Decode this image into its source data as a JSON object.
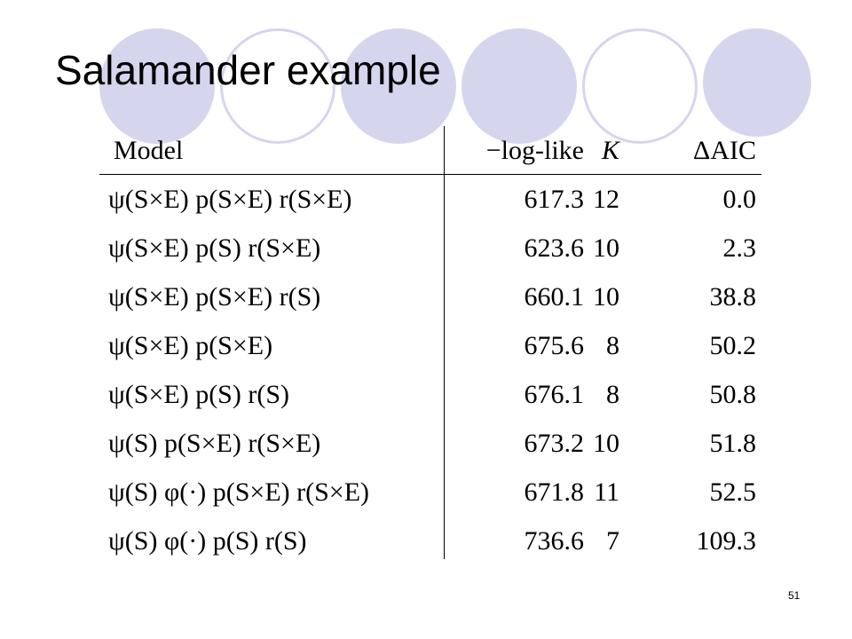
{
  "slide": {
    "title": "Salamander example",
    "page_number": "51",
    "decoration_color": "#d5d5ee"
  },
  "table": {
    "headers": {
      "model": "Model",
      "loglike": "−log-like",
      "k": "K",
      "aic": "ΔAIC"
    },
    "rows": [
      {
        "model": "ψ(S×E) p(S×E) r(S×E)",
        "loglike": "617.3",
        "k": "12",
        "aic": "0.0"
      },
      {
        "model": "ψ(S×E) p(S) r(S×E)",
        "loglike": "623.6",
        "k": "10",
        "aic": "2.3"
      },
      {
        "model": "ψ(S×E) p(S×E) r(S)",
        "loglike": "660.1",
        "k": "10",
        "aic": "38.8"
      },
      {
        "model": "ψ(S×E) p(S×E)",
        "loglike": "675.6",
        "k": "8",
        "aic": "50.2"
      },
      {
        "model": "ψ(S×E) p(S) r(S)",
        "loglike": "676.1",
        "k": "8",
        "aic": "50.8"
      },
      {
        "model": "ψ(S) p(S×E) r(S×E)",
        "loglike": "673.2",
        "k": "10",
        "aic": "51.8"
      },
      {
        "model": "ψ(S) φ(·) p(S×E) r(S×E)",
        "loglike": "671.8",
        "k": "11",
        "aic": "52.5"
      },
      {
        "model": "ψ(S) φ(·) p(S) r(S)",
        "loglike": "736.6",
        "k": "7",
        "aic": "109.3"
      }
    ]
  }
}
